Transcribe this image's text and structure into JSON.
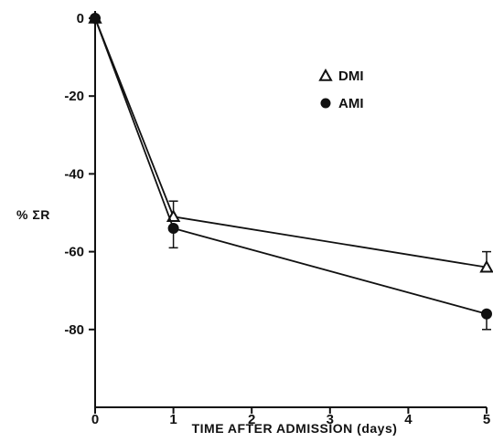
{
  "chart_data": {
    "type": "line",
    "title": "",
    "xlabel": "TIME AFTER ADMISSION (days)",
    "ylabel": "% ΣR",
    "xlim": [
      0,
      5
    ],
    "ylim": [
      -100,
      0
    ],
    "x_ticks": [
      0,
      1,
      2,
      3,
      4,
      5
    ],
    "y_ticks": [
      0,
      -20,
      -40,
      -60,
      -80
    ],
    "grid": false,
    "legend_position": "top-right",
    "series": [
      {
        "name": "DMI",
        "marker": "open-triangle",
        "x": [
          0,
          1,
          5
        ],
        "y": [
          0,
          -51,
          -64
        ],
        "error": [
          0,
          4,
          4
        ]
      },
      {
        "name": "AMI",
        "marker": "filled-circle",
        "x": [
          0,
          1,
          5
        ],
        "y": [
          0,
          -54,
          -76
        ],
        "error": [
          0,
          5,
          4
        ]
      }
    ]
  }
}
